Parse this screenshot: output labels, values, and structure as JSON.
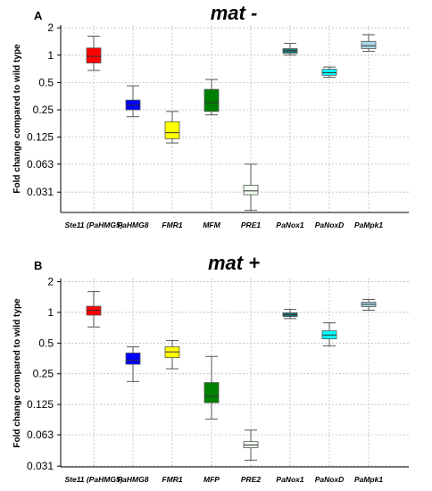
{
  "figure": {
    "y_axis_title": "Fold change compared to wild type"
  },
  "chart_data": [
    {
      "type": "box",
      "panel": "A",
      "title": "mat -",
      "ylabel": "Fold change compared to wild type",
      "yscale": "log2",
      "yticks": [
        2,
        1,
        0.5,
        0.25,
        0.125,
        0.063,
        0.031
      ],
      "ytick_labels": [
        "2",
        "1",
        "0.5",
        "0.25",
        "0.125",
        "0.063",
        "0.031"
      ],
      "ylim": [
        0.0185,
        2.15
      ],
      "grid": true,
      "categories": [
        "Ste11 (PaHMG5)",
        "PaHMG8",
        "FMR1",
        "MFM",
        "PRE1",
        "PaNox1",
        "PaNoxD",
        "PaMpk1"
      ],
      "boxes": [
        {
          "min": 0.68,
          "q1": 0.82,
          "median": 0.97,
          "q3": 1.2,
          "max": 1.62,
          "color": "#ff0000"
        },
        {
          "min": 0.21,
          "q1": 0.25,
          "median": 0.28,
          "q3": 0.32,
          "max": 0.46,
          "color": "#0000ff"
        },
        {
          "min": 0.108,
          "q1": 0.12,
          "median": 0.14,
          "q3": 0.185,
          "max": 0.24,
          "color": "#ffff00"
        },
        {
          "min": 0.22,
          "q1": 0.24,
          "median": 0.3,
          "q3": 0.42,
          "max": 0.54,
          "color": "#008000"
        },
        {
          "min": 0.0195,
          "q1": 0.029,
          "median": 0.032,
          "q3": 0.037,
          "max": 0.063,
          "color": "#f0fff0"
        },
        {
          "min": 1.0,
          "q1": 1.05,
          "median": 1.12,
          "q3": 1.18,
          "max": 1.35,
          "color": "#1a7a7a"
        },
        {
          "min": 0.57,
          "q1": 0.6,
          "median": 0.64,
          "q3": 0.7,
          "max": 0.74,
          "color": "#00ffff"
        },
        {
          "min": 1.1,
          "q1": 1.18,
          "median": 1.27,
          "q3": 1.42,
          "max": 1.68,
          "color": "#a8d8e8"
        }
      ]
    },
    {
      "type": "box",
      "panel": "B",
      "title": "mat +",
      "ylabel": "Fold change compared to wild type",
      "yscale": "log2",
      "yticks": [
        2,
        1,
        0.5,
        0.25,
        0.125,
        0.063,
        0.031
      ],
      "ytick_labels": [
        "2",
        "1",
        "0.5",
        "0.25",
        "0.125",
        "0.063",
        "0.031"
      ],
      "ylim": [
        0.0305,
        2.15
      ],
      "grid": true,
      "categories": [
        "Ste11 (PaHMG5)",
        "PaHMG8",
        "FMR1",
        "MFP",
        "PRE2",
        "PaNox1",
        "PaNoxD",
        "PaMpk1"
      ],
      "boxes": [
        {
          "min": 0.72,
          "q1": 0.94,
          "median": 1.05,
          "q3": 1.15,
          "max": 1.6,
          "color": "#ff0000"
        },
        {
          "min": 0.21,
          "q1": 0.31,
          "median": 0.34,
          "q3": 0.4,
          "max": 0.46,
          "color": "#0000ff"
        },
        {
          "min": 0.28,
          "q1": 0.36,
          "median": 0.41,
          "q3": 0.46,
          "max": 0.53,
          "color": "#ffff00"
        },
        {
          "min": 0.09,
          "q1": 0.13,
          "median": 0.15,
          "q3": 0.205,
          "max": 0.37,
          "color": "#008000"
        },
        {
          "min": 0.0355,
          "q1": 0.047,
          "median": 0.05,
          "q3": 0.054,
          "max": 0.07,
          "color": "#f0fff0"
        },
        {
          "min": 0.87,
          "q1": 0.91,
          "median": 0.95,
          "q3": 0.99,
          "max": 1.07,
          "color": "#1a7a7a"
        },
        {
          "min": 0.47,
          "q1": 0.55,
          "median": 0.6,
          "q3": 0.66,
          "max": 0.79,
          "color": "#00ffff"
        },
        {
          "min": 1.05,
          "q1": 1.14,
          "median": 1.2,
          "q3": 1.26,
          "max": 1.34,
          "color": "#a8d8e8"
        }
      ]
    }
  ]
}
